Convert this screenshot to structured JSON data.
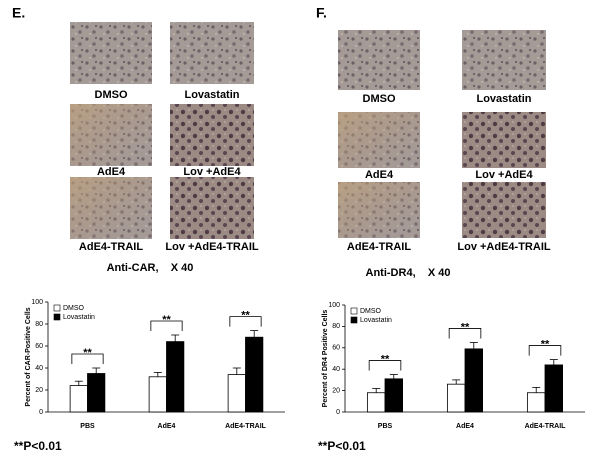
{
  "panels": [
    {
      "label": "E.",
      "images": [
        "DMSO",
        "Lovastatin",
        "AdE4",
        "Lov +AdE4",
        "AdE4-TRAIL",
        "Lov +AdE4-TRAIL"
      ],
      "stain": "Anti-CAR,    X 40",
      "note": "**P<0.01"
    },
    {
      "label": "F.",
      "images": [
        "DMSO",
        "Lovastatin",
        "AdE4",
        "Lov +AdE4",
        "AdE4-TRAIL",
        "Lov +AdE4-TRAIL"
      ],
      "stain": "Anti-DR4,    X 40",
      "note": "**P<0.01"
    }
  ],
  "chart_data": [
    {
      "type": "bar",
      "ylabel": "Percent of CAR-Positive Cells",
      "categories": [
        "PBS",
        "AdE4",
        "AdE4-TRAIL"
      ],
      "series": [
        {
          "name": "DMSO",
          "color": "#ffffff",
          "values": [
            24,
            32,
            34
          ],
          "errors": [
            4,
            4,
            6
          ]
        },
        {
          "name": "Lovastatin",
          "color": "#000000",
          "values": [
            35,
            64,
            68
          ],
          "errors": [
            5,
            6,
            6
          ]
        }
      ],
      "significance": [
        "**",
        "**",
        "**"
      ],
      "ylim": [
        0,
        100
      ],
      "yticks": [
        0,
        20,
        40,
        60,
        80,
        100
      ]
    },
    {
      "type": "bar",
      "ylabel": "Percent of DR4 Positive Cells",
      "categories": [
        "PBS",
        "AdE4",
        "AdE4-TRAIL"
      ],
      "series": [
        {
          "name": "DMSO",
          "color": "#ffffff",
          "values": [
            18,
            26,
            18
          ],
          "errors": [
            4,
            4,
            5
          ]
        },
        {
          "name": "Lovastatin",
          "color": "#000000",
          "values": [
            31,
            59,
            44
          ],
          "errors": [
            4,
            6,
            5
          ]
        }
      ],
      "significance": [
        "**",
        "**",
        "**"
      ],
      "ylim": [
        0,
        100
      ],
      "yticks": [
        0,
        20,
        40,
        60,
        80,
        100
      ]
    }
  ]
}
